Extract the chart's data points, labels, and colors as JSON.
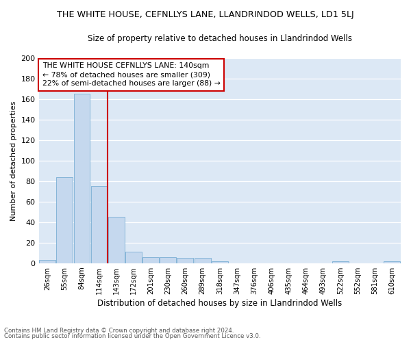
{
  "title": "THE WHITE HOUSE, CEFNLLYS LANE, LLANDRINDOD WELLS, LD1 5LJ",
  "subtitle": "Size of property relative to detached houses in Llandrindod Wells",
  "xlabel": "Distribution of detached houses by size in Llandrindod Wells",
  "ylabel": "Number of detached properties",
  "footnote1": "Contains HM Land Registry data © Crown copyright and database right 2024.",
  "footnote2": "Contains public sector information licensed under the Open Government Licence v3.0.",
  "categories": [
    "26sqm",
    "55sqm",
    "84sqm",
    "114sqm",
    "143sqm",
    "172sqm",
    "201sqm",
    "230sqm",
    "260sqm",
    "289sqm",
    "318sqm",
    "347sqm",
    "376sqm",
    "406sqm",
    "435sqm",
    "464sqm",
    "493sqm",
    "522sqm",
    "552sqm",
    "581sqm",
    "610sqm"
  ],
  "values": [
    3,
    84,
    165,
    75,
    45,
    11,
    6,
    6,
    5,
    5,
    2,
    0,
    0,
    0,
    0,
    0,
    0,
    2,
    0,
    0,
    2
  ],
  "bar_color": "#c5d8ee",
  "bar_edgecolor": "#7aafd4",
  "vline_color": "#cc0000",
  "annotation_title": "THE WHITE HOUSE CEFNLLYS LANE: 140sqm",
  "annotation_line1": "← 78% of detached houses are smaller (309)",
  "annotation_line2": "22% of semi-detached houses are larger (88) →",
  "annotation_box_color": "#cc0000",
  "background_color": "#dce8f5",
  "ylim": [
    0,
    200
  ],
  "yticks": [
    0,
    20,
    40,
    60,
    80,
    100,
    120,
    140,
    160,
    180,
    200
  ]
}
